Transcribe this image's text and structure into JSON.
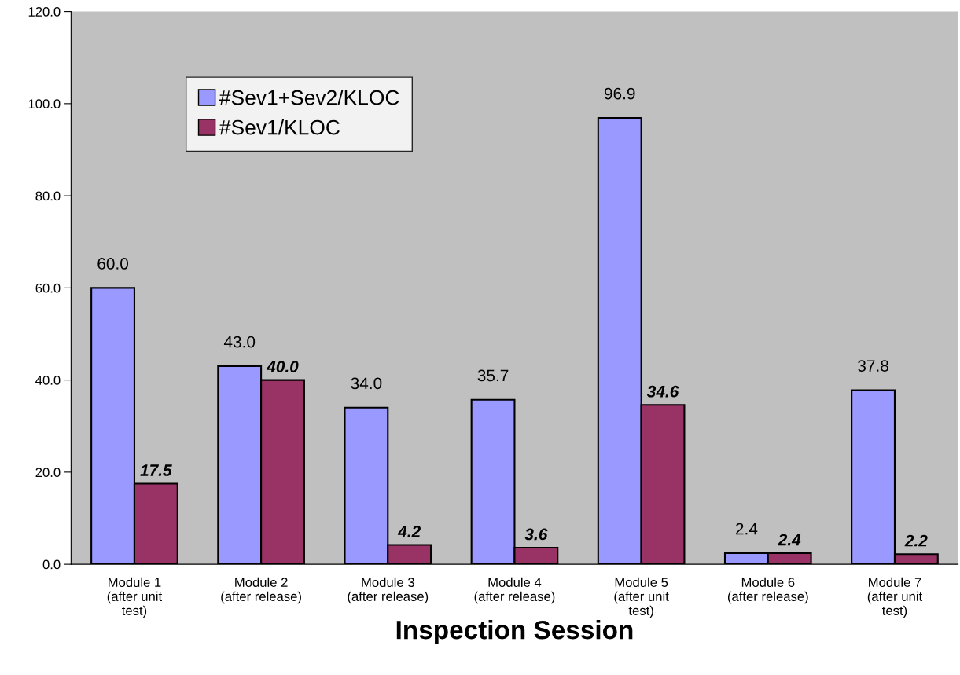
{
  "chart_data": {
    "type": "bar",
    "xlabel": "Inspection Session",
    "categories": [
      "Module 1\n(after unit\ntest)",
      "Module 2\n(after release)",
      "Module 3\n(after release)",
      "Module 4\n(after release)",
      "Module 5\n(after unit\ntest)",
      "Module 6\n(after release)",
      "Module 7\n(after unit\ntest)"
    ],
    "series": [
      {
        "name": "#Sev1+Sev2/KLOC",
        "color": "#9999ff",
        "values": [
          60.0,
          43.0,
          34.0,
          35.7,
          96.9,
          2.4,
          37.8
        ],
        "value_labels": [
          "60.0",
          "43.0",
          "34.0",
          "35.7",
          "96.9",
          "2.4",
          "37.8"
        ]
      },
      {
        "name": "#Sev1/KLOC",
        "color": "#993366",
        "values": [
          17.5,
          40.0,
          4.2,
          3.6,
          34.6,
          2.4,
          2.2
        ],
        "value_labels": [
          "17.5",
          "40.0",
          "4.2",
          "3.6",
          "34.6",
          "2.4",
          "2.2"
        ]
      }
    ],
    "ylim": [
      0,
      120
    ],
    "yticks": [
      {
        "value": 0,
        "label": "0.0"
      },
      {
        "value": 20,
        "label": "20.0"
      },
      {
        "value": 40,
        "label": "40.0"
      },
      {
        "value": 60,
        "label": "60.0"
      },
      {
        "value": 80,
        "label": "80.0"
      },
      {
        "value": 100,
        "label": "100.0"
      },
      {
        "value": 120,
        "label": "120.0"
      }
    ],
    "grid": false,
    "legend": "top left"
  }
}
